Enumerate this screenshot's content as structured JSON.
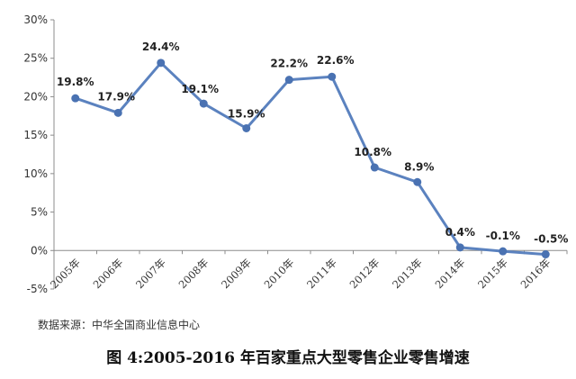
{
  "chart_data": {
    "type": "line",
    "title": "",
    "xlabel": "",
    "ylabel": "",
    "ylim": [
      -5,
      30
    ],
    "y_ticks": [
      -5,
      0,
      5,
      10,
      15,
      20,
      25,
      30
    ],
    "y_tick_labels": [
      "-5%",
      "0%",
      "5%",
      "10%",
      "15%",
      "20%",
      "25%",
      "30%"
    ],
    "categories": [
      "2005年",
      "2006年",
      "2007年",
      "2008年",
      "2009年",
      "2010年",
      "2011年",
      "2012年",
      "2013年",
      "2014年",
      "2015年",
      "2016年"
    ],
    "series": [
      {
        "values": [
          19.8,
          17.9,
          24.4,
          19.1,
          15.9,
          22.2,
          22.6,
          10.8,
          8.9,
          0.4,
          -0.1,
          -0.5
        ],
        "data_labels": [
          "19.8%",
          "17.9%",
          "24.4%",
          "19.1%",
          "15.9%",
          "22.2%",
          "22.6%",
          "10.8%",
          "8.9%",
          "0.4%",
          "-0.1%",
          "-0.5%"
        ]
      }
    ],
    "line_color": "#5b82bf",
    "marker_color": "#4a72b2",
    "grid": false,
    "legend": "none"
  },
  "source_note": "数据来源：中华全国商业信息中心",
  "caption": "图 4:2005-2016 年百家重点大型零售企业零售增速"
}
